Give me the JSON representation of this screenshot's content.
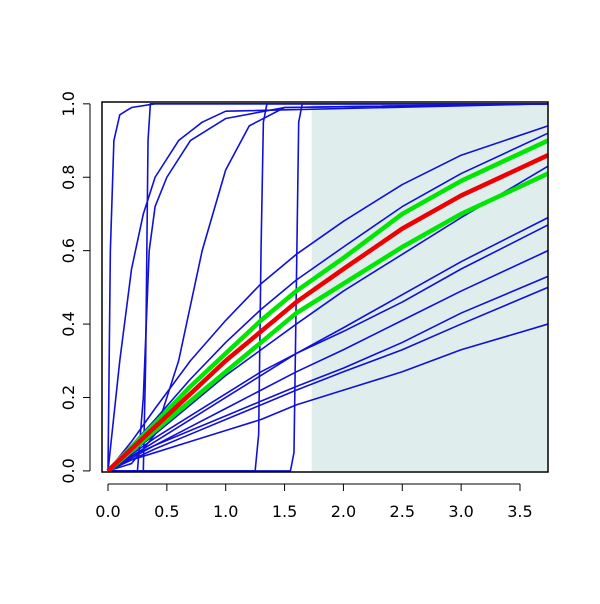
{
  "chart_data": {
    "type": "line",
    "xlim": [
      -0.051,
      3.738
    ],
    "ylim": [
      -0.003,
      1.005
    ],
    "xticks": [
      {
        "value": 0,
        "label": "0.0"
      },
      {
        "value": 0.5,
        "label": "0.5"
      },
      {
        "value": 1,
        "label": "1.0"
      },
      {
        "value": 1.5,
        "label": "1.5"
      },
      {
        "value": 2,
        "label": "2.0"
      },
      {
        "value": 2.5,
        "label": "2.5"
      },
      {
        "value": 3,
        "label": "3.0"
      },
      {
        "value": 3.5,
        "label": "3.5"
      }
    ],
    "yticks": [
      {
        "value": 0,
        "label": "0.0"
      },
      {
        "value": 0.2,
        "label": "0.2"
      },
      {
        "value": 0.4,
        "label": "0.4"
      },
      {
        "value": 0.6,
        "label": "0.6"
      },
      {
        "value": 0.8,
        "label": "0.8"
      },
      {
        "value": 1,
        "label": "1.0"
      }
    ],
    "shade": {
      "x": [
        1.73,
        3.738
      ],
      "y": [
        0,
        1
      ],
      "color": "#dfeded"
    },
    "series": [
      {
        "color": "#1010d8",
        "width": 1.6,
        "x": [
          0,
          0.2,
          0.4,
          0.7,
          1.0,
          1.3,
          1.6,
          2.0,
          2.5,
          3.0,
          3.738
        ],
        "values": [
          0,
          0.08,
          0.17,
          0.3,
          0.41,
          0.51,
          0.59,
          0.68,
          0.78,
          0.86,
          0.94
        ]
      },
      {
        "color": "#1010d8",
        "width": 1.6,
        "x": [
          0,
          0.2,
          0.4,
          0.7,
          1.0,
          1.3,
          1.6,
          2.0,
          2.5,
          3.0,
          3.738
        ],
        "values": [
          0,
          0.07,
          0.14,
          0.25,
          0.35,
          0.44,
          0.52,
          0.61,
          0.72,
          0.81,
          0.92
        ]
      },
      {
        "color": "#1010d8",
        "width": 1.6,
        "x": [
          0,
          0.2,
          0.4,
          0.7,
          1.0,
          1.3,
          1.6,
          2.0,
          2.5,
          3.0,
          3.738
        ],
        "values": [
          0,
          0.05,
          0.1,
          0.18,
          0.26,
          0.33,
          0.4,
          0.49,
          0.59,
          0.69,
          0.83
        ]
      },
      {
        "color": "#1010d8",
        "width": 1.6,
        "x": [
          0,
          0.2,
          0.4,
          0.7,
          1.0,
          1.3,
          1.6,
          2.0,
          2.5,
          3.0,
          3.738
        ],
        "values": [
          0,
          0.04,
          0.08,
          0.14,
          0.2,
          0.26,
          0.32,
          0.39,
          0.48,
          0.57,
          0.69
        ]
      },
      {
        "color": "#1010d8",
        "width": 1.6,
        "x": [
          0,
          0.2,
          0.4,
          0.7,
          1.0,
          1.3,
          1.6,
          2.0,
          2.5,
          3.0,
          3.738
        ],
        "values": [
          0,
          0.045,
          0.09,
          0.15,
          0.21,
          0.27,
          0.32,
          0.38,
          0.46,
          0.55,
          0.67
        ]
      },
      {
        "color": "#1010d8",
        "width": 1.6,
        "x": [
          0,
          0.2,
          0.4,
          0.7,
          1.0,
          1.3,
          1.6,
          2.0,
          2.5,
          3.0,
          3.738
        ],
        "values": [
          0,
          0.04,
          0.07,
          0.12,
          0.17,
          0.22,
          0.27,
          0.33,
          0.41,
          0.49,
          0.6
        ]
      },
      {
        "color": "#1010d8",
        "width": 1.6,
        "x": [
          0,
          0.2,
          0.4,
          0.7,
          1.0,
          1.3,
          1.6,
          2.0,
          2.5,
          3.0,
          3.738
        ],
        "values": [
          0,
          0.035,
          0.07,
          0.11,
          0.15,
          0.19,
          0.23,
          0.28,
          0.35,
          0.43,
          0.53
        ]
      },
      {
        "color": "#1010d8",
        "width": 1.6,
        "x": [
          0,
          0.2,
          0.4,
          0.7,
          1.0,
          1.3,
          1.6,
          2.0,
          2.5,
          3.0,
          3.738
        ],
        "values": [
          0,
          0.03,
          0.06,
          0.1,
          0.14,
          0.18,
          0.22,
          0.27,
          0.33,
          0.4,
          0.5
        ]
      },
      {
        "color": "#1010d8",
        "width": 1.6,
        "x": [
          0,
          0.2,
          0.4,
          0.7,
          1.0,
          1.3,
          1.6,
          2.0,
          2.5,
          3.0,
          3.738
        ],
        "values": [
          0,
          0.03,
          0.05,
          0.08,
          0.11,
          0.14,
          0.18,
          0.22,
          0.27,
          0.33,
          0.4
        ]
      },
      {
        "color": "#1010d8",
        "width": 1.6,
        "x": [
          0,
          0.02,
          0.05,
          0.1,
          0.2,
          0.4,
          3.738
        ],
        "values": [
          0,
          0.6,
          0.9,
          0.97,
          0.99,
          1,
          1
        ]
      },
      {
        "color": "#1010d8",
        "width": 1.6,
        "x": [
          0,
          0.1,
          0.2,
          0.3,
          0.4,
          0.6,
          0.8,
          1.0,
          3.738
        ],
        "values": [
          0,
          0.3,
          0.55,
          0.7,
          0.8,
          0.9,
          0.95,
          0.98,
          1
        ]
      },
      {
        "color": "#1010d8",
        "width": 1.6,
        "x": [
          0,
          0.25,
          0.3,
          0.35,
          0.4,
          0.5,
          0.7,
          1.0,
          1.5,
          3.738
        ],
        "values": [
          0,
          0,
          0.2,
          0.6,
          0.72,
          0.8,
          0.9,
          0.96,
          0.99,
          1
        ]
      },
      {
        "color": "#1010d8",
        "width": 1.6,
        "x": [
          0,
          0.3,
          0.32,
          0.34,
          0.36,
          3.738
        ],
        "values": [
          0,
          0,
          0.3,
          0.9,
          1,
          1
        ]
      },
      {
        "color": "#1010d8",
        "width": 1.6,
        "x": [
          0,
          0.2,
          0.4,
          0.6,
          0.8,
          1.0,
          1.2,
          1.5,
          3.738
        ],
        "values": [
          0,
          0.02,
          0.1,
          0.3,
          0.6,
          0.82,
          0.94,
          0.99,
          1
        ]
      },
      {
        "color": "#1010d8",
        "width": 1.6,
        "x": [
          0,
          1.25,
          1.28,
          1.3,
          1.32,
          1.35,
          3.738
        ],
        "values": [
          0,
          0,
          0.1,
          0.6,
          0.95,
          1,
          1
        ]
      },
      {
        "color": "#1010d8",
        "width": 1.6,
        "x": [
          0,
          1.55,
          1.58,
          1.6,
          1.62,
          1.65,
          3.738
        ],
        "values": [
          0,
          0,
          0.05,
          0.5,
          0.95,
          1,
          1
        ]
      },
      {
        "color": "#00e600",
        "width": 4.5,
        "x": [
          0,
          0.2,
          0.4,
          0.7,
          1.0,
          1.3,
          1.6,
          2.0,
          2.5,
          3.0,
          3.738
        ],
        "values": [
          0,
          0.065,
          0.13,
          0.23,
          0.32,
          0.41,
          0.49,
          0.58,
          0.7,
          0.79,
          0.9
        ]
      },
      {
        "color": "#00e600",
        "width": 4.5,
        "x": [
          0,
          0.2,
          0.4,
          0.7,
          1.0,
          1.3,
          1.6,
          2.0,
          2.5,
          3.0,
          3.738
        ],
        "values": [
          0,
          0.055,
          0.11,
          0.19,
          0.27,
          0.35,
          0.43,
          0.51,
          0.61,
          0.7,
          0.81
        ]
      },
      {
        "color": "#ee0000",
        "width": 4.5,
        "x": [
          0,
          0.2,
          0.4,
          0.7,
          1.0,
          1.3,
          1.6,
          2.0,
          2.5,
          3.0,
          3.738
        ],
        "values": [
          0,
          0.06,
          0.12,
          0.21,
          0.3,
          0.38,
          0.46,
          0.55,
          0.66,
          0.75,
          0.86
        ]
      }
    ]
  }
}
